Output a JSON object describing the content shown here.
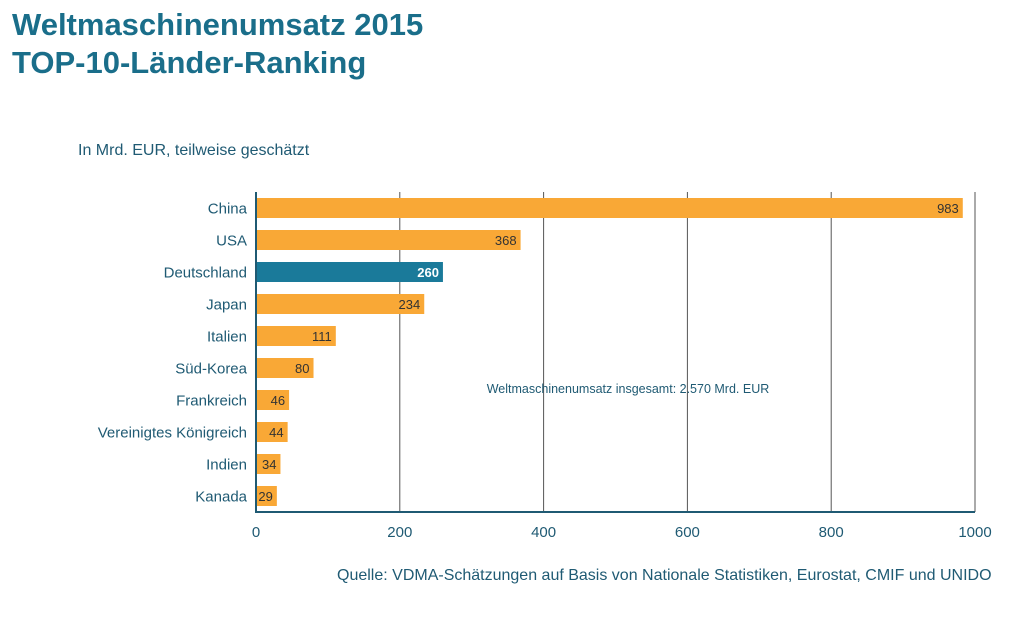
{
  "title": {
    "line1": "Weltmaschinenumsatz 2015",
    "line2": "TOP-10-Länder-Ranking"
  },
  "subtitle": "In Mrd. EUR, teilweise geschätzt",
  "source": "Quelle:  VDMA-Schätzungen auf Basis von Nationale Statistiken, Eurostat, CMIF und UNIDO",
  "colors": {
    "bar": "#f9a836",
    "highlight": "#1a7a9a",
    "axis": "#1f5a73",
    "grid": "#555555",
    "title": "#1a6e8a"
  },
  "chart_data": {
    "type": "bar",
    "orientation": "horizontal",
    "categories": [
      "China",
      "USA",
      "Deutschland",
      "Japan",
      "Italien",
      "Süd-Korea",
      "Frankreich",
      "Vereinigtes Königreich",
      "Indien",
      "Kanada"
    ],
    "values": [
      983,
      368,
      260,
      234,
      111,
      80,
      46,
      44,
      34,
      29
    ],
    "highlight_category": "Deutschland",
    "xlim": [
      0,
      1000
    ],
    "xticks": [
      0,
      200,
      400,
      600,
      800,
      1000
    ],
    "grid": true,
    "annotation": "Weltmaschinenumsatz  insgesamt: 2.570 Mrd. EUR"
  }
}
